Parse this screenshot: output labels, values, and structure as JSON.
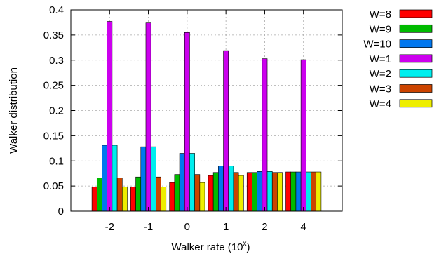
{
  "chart_data": {
    "type": "bar",
    "xlabel": "Walker rate (10",
    "xlabel_sup": "x",
    "xlabel_close": ")",
    "ylabel": "Walker distribution",
    "ylim": [
      0,
      0.4
    ],
    "yticks": [
      "0",
      "0.05",
      "0.1",
      "0.15",
      "0.2",
      "0.25",
      "0.3",
      "0.35",
      "0.4"
    ],
    "categories": [
      "-2",
      "-1",
      "0",
      "1",
      "2",
      "4"
    ],
    "grid": true,
    "legend_position": "right",
    "series": [
      {
        "name": "W=8",
        "color": "#ff0000",
        "values": [
          0.048,
          0.048,
          0.057,
          0.071,
          0.077,
          0.078
        ]
      },
      {
        "name": "W=9",
        "color": "#00bb00",
        "values": [
          0.066,
          0.068,
          0.073,
          0.077,
          0.077,
          0.078
        ]
      },
      {
        "name": "W=10",
        "color": "#0077ee",
        "values": [
          0.131,
          0.128,
          0.115,
          0.09,
          0.079,
          0.078
        ]
      },
      {
        "name": "W=1",
        "color": "#cc00ee",
        "values": [
          0.377,
          0.374,
          0.355,
          0.319,
          0.303,
          0.301
        ]
      },
      {
        "name": "W=2",
        "color": "#00eeee",
        "values": [
          0.131,
          0.128,
          0.115,
          0.09,
          0.079,
          0.078
        ]
      },
      {
        "name": "W=3",
        "color": "#cc4400",
        "values": [
          0.066,
          0.068,
          0.073,
          0.077,
          0.077,
          0.078
        ]
      },
      {
        "name": "W=4",
        "color": "#eeee00",
        "values": [
          0.048,
          0.048,
          0.057,
          0.071,
          0.077,
          0.078
        ]
      }
    ]
  }
}
